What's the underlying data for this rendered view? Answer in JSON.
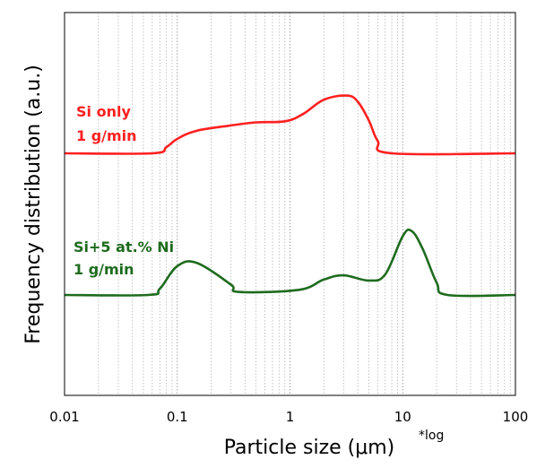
{
  "chart_data": {
    "type": "line",
    "title": "",
    "xlabel": "Particle size (μm)",
    "xlabel_note": "*log",
    "ylabel": "Frequency distribution (a.u.)",
    "x_scale": "log",
    "xlim": [
      0.01,
      100
    ],
    "x_ticks": [
      "0.01",
      "0.1",
      "1",
      "10",
      "100"
    ],
    "grid": "vertical minor log gridlines, dotted",
    "legend": "none",
    "series": [
      {
        "label_lines": [
          "Si only",
          "1 g/min"
        ],
        "color": "#ff2020",
        "baseline": 0,
        "points": [
          [
            0.01,
            0
          ],
          [
            0.06,
            0
          ],
          [
            0.08,
            0.06
          ],
          [
            0.1,
            0.14
          ],
          [
            0.15,
            0.22
          ],
          [
            0.3,
            0.27
          ],
          [
            0.5,
            0.3
          ],
          [
            0.9,
            0.31
          ],
          [
            1.3,
            0.38
          ],
          [
            2.0,
            0.52
          ],
          [
            3.2,
            0.56
          ],
          [
            4.0,
            0.5
          ],
          [
            5.0,
            0.32
          ],
          [
            6.0,
            0.12
          ],
          [
            8.0,
            0
          ],
          [
            100,
            0
          ]
        ]
      },
      {
        "label_lines": [
          "Si+5 at.% Ni",
          "1 g/min"
        ],
        "color": "#1e6b1e",
        "baseline": -1,
        "points": [
          [
            0.01,
            0
          ],
          [
            0.055,
            0
          ],
          [
            0.07,
            0.06
          ],
          [
            0.1,
            0.28
          ],
          [
            0.15,
            0.31
          ],
          [
            0.3,
            0.1
          ],
          [
            0.35,
            0.03
          ],
          [
            1.2,
            0.05
          ],
          [
            2.0,
            0.15
          ],
          [
            3.0,
            0.19
          ],
          [
            5.0,
            0.14
          ],
          [
            7.0,
            0.2
          ],
          [
            10.0,
            0.57
          ],
          [
            12.0,
            0.62
          ],
          [
            15.0,
            0.45
          ],
          [
            20.0,
            0.12
          ],
          [
            25.0,
            0
          ],
          [
            100,
            0
          ]
        ]
      }
    ]
  }
}
